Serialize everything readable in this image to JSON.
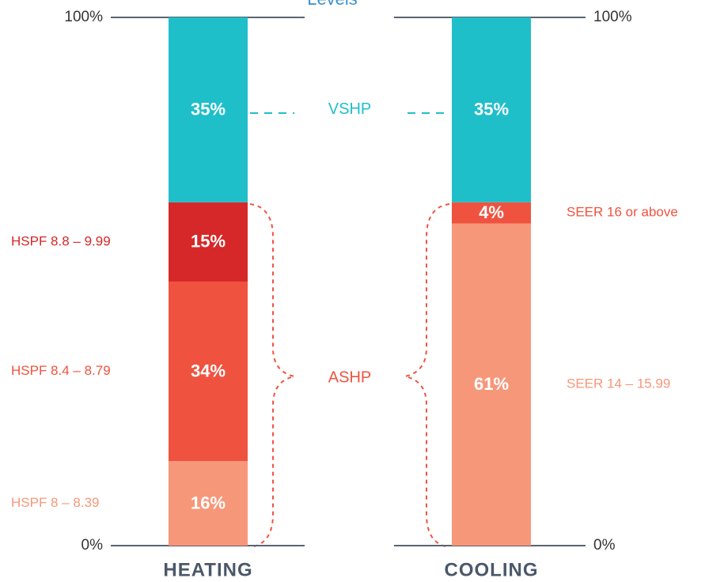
{
  "chart_data": {
    "type": "stacked_bar",
    "title": "Levels",
    "categories": [
      "HEATING",
      "COOLING"
    ],
    "ylim": [
      0,
      100
    ],
    "yticks": [
      {
        "value": 0,
        "label": "0%"
      },
      {
        "value": 100,
        "label": "100%"
      }
    ],
    "series": [
      {
        "name": "HSPF 8 – 8.39",
        "color": "#f7977a",
        "values": [
          16,
          null
        ],
        "value_labels": [
          "16%",
          null
        ]
      },
      {
        "name": "SEER 14 – 15.99",
        "color": "#f7977a",
        "values": [
          null,
          61
        ],
        "value_labels": [
          null,
          "61%"
        ]
      },
      {
        "name": "HSPF 8.4 – 8.79",
        "color": "#ef533f",
        "values": [
          34,
          null
        ],
        "value_labels": [
          "34%",
          null
        ]
      },
      {
        "name": "SEER 16 or above",
        "color": "#ef533f",
        "values": [
          null,
          4
        ],
        "value_labels": [
          null,
          "4%"
        ]
      },
      {
        "name": "HSPF 8.8 – 9.99",
        "color": "#d62828",
        "values": [
          15,
          null
        ],
        "value_labels": [
          "15%",
          null
        ]
      },
      {
        "name": "VSHP",
        "color": "#1fbfca",
        "values": [
          35,
          35
        ],
        "value_labels": [
          "35%",
          "35%"
        ]
      }
    ],
    "annotations": [
      "ASHP"
    ]
  }
}
